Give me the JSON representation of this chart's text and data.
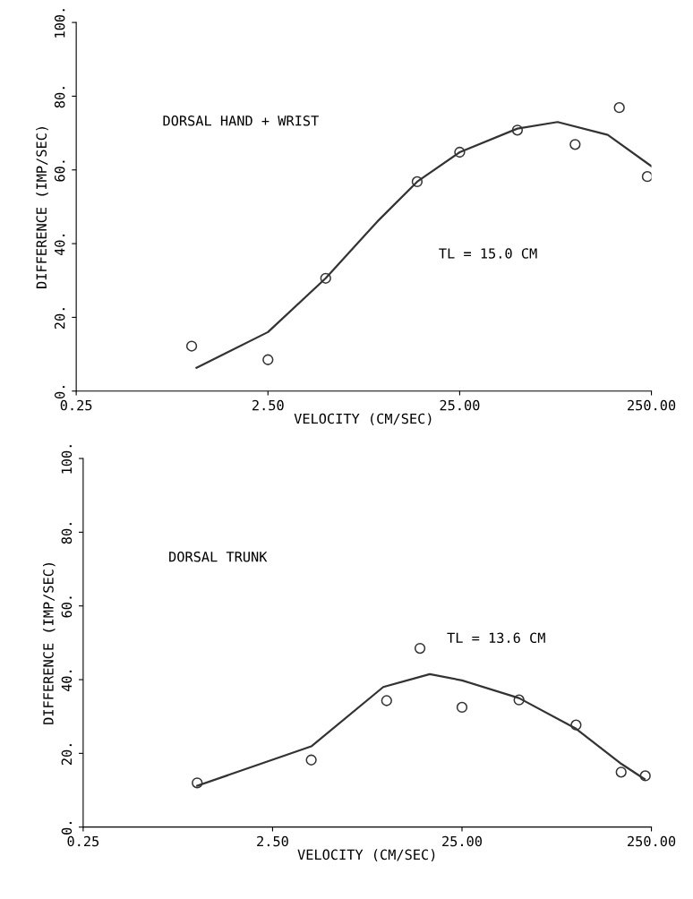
{
  "chart_data": [
    {
      "type": "scatter",
      "xlabel": "VELOCITY (CM/SEC)",
      "ylabel": "DIFFERENCE (IMP/SEC)",
      "log": "x",
      "xlim": [
        0.25,
        250
      ],
      "xticks": [
        {
          "value": 0.25,
          "label": "0.25"
        },
        {
          "value": 2.5,
          "label": "2.50"
        },
        {
          "value": 25,
          "label": "25.00"
        },
        {
          "value": 250,
          "label": "250.00"
        }
      ],
      "ylim": [
        0,
        100
      ],
      "yticks": [
        {
          "value": 0,
          "label": "0."
        },
        {
          "value": 20,
          "label": "20."
        },
        {
          "value": 40,
          "label": "40."
        },
        {
          "value": 60,
          "label": "60."
        },
        {
          "value": 80,
          "label": "80."
        },
        {
          "value": 100,
          "label": "100."
        }
      ],
      "grid": false,
      "legend": false,
      "annotations": [
        "DORSAL HAND + WRIST",
        "TL = 15.0 CM"
      ],
      "series": [
        {
          "marker": "circle",
          "color": "#333333",
          "x": [
            1,
            2.5,
            5,
            15,
            25,
            50,
            100,
            170,
            238
          ],
          "values": [
            12.2,
            8.5,
            30.6,
            56.8,
            64.8,
            70.8,
            66.9,
            76.9,
            58.2
          ]
        },
        {
          "type": "line",
          "marker": "none",
          "line_style": "solid",
          "color": "#333333",
          "x": [
            1.06,
            2.5,
            5,
            9.3,
            15,
            25,
            50,
            81,
            148,
            250
          ],
          "values": [
            6.3,
            16,
            30.6,
            46,
            56.8,
            64.8,
            71.2,
            73,
            69.5,
            61
          ]
        }
      ]
    },
    {
      "type": "scatter",
      "xlabel": "VELOCITY (CM/SEC)",
      "ylabel": "DIFFERENCE (IMP/SEC)",
      "log": "x",
      "xlim": [
        0.25,
        250
      ],
      "xticks": [
        {
          "value": 0.25,
          "label": "0.25"
        },
        {
          "value": 2.5,
          "label": "2.50"
        },
        {
          "value": 25,
          "label": "25.00"
        },
        {
          "value": 250,
          "label": "250.00"
        }
      ],
      "ylim": [
        0,
        100
      ],
      "yticks": [
        {
          "value": 0,
          "label": "0."
        },
        {
          "value": 20,
          "label": "20."
        },
        {
          "value": 40,
          "label": "40."
        },
        {
          "value": 60,
          "label": "60."
        },
        {
          "value": 80,
          "label": "80."
        },
        {
          "value": 100,
          "label": "100."
        }
      ],
      "grid": false,
      "legend": false,
      "annotations": [
        "DORSAL TRUNK",
        "TL = 13.6 CM"
      ],
      "series": [
        {
          "marker": "circle",
          "color": "#333333",
          "x": [
            1,
            4,
            10,
            15,
            25,
            50,
            100,
            173,
            232
          ],
          "values": [
            12,
            18.2,
            34.3,
            48.5,
            32.5,
            34.5,
            27.7,
            14.9,
            13.9
          ]
        },
        {
          "type": "line",
          "marker": "none",
          "line_style": "solid",
          "color": "#333333",
          "x": [
            1,
            4,
            9.6,
            16.9,
            25,
            50,
            100,
            174,
            230
          ],
          "values": [
            11.2,
            21.9,
            38,
            41.5,
            39.8,
            35,
            26.7,
            17.1,
            13
          ]
        }
      ]
    }
  ]
}
